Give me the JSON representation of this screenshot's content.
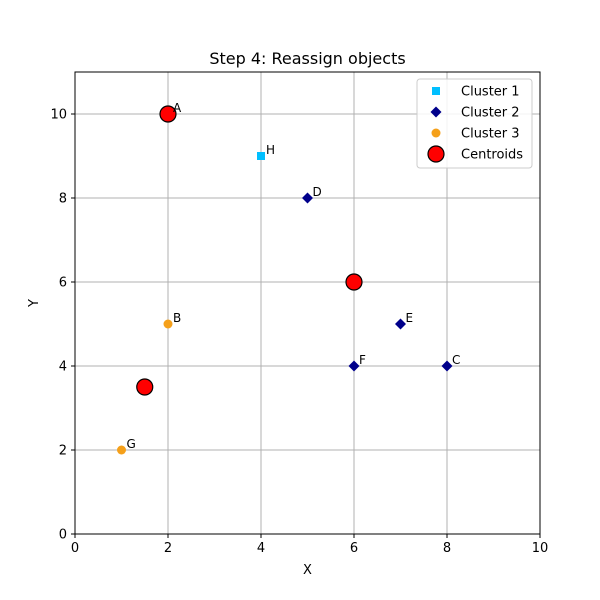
{
  "chart_data": {
    "type": "scatter",
    "title": "Step 4: Reassign objects",
    "xlabel": "X",
    "ylabel": "Y",
    "xlim": [
      0,
      10
    ],
    "ylim": [
      0,
      11
    ],
    "xticks": [
      0,
      2,
      4,
      6,
      8,
      10
    ],
    "yticks": [
      0,
      2,
      4,
      6,
      8,
      10
    ],
    "grid": true,
    "legend_position": "top-right",
    "series": [
      {
        "name": "Cluster 1",
        "marker": "square",
        "color": "#00bfff",
        "points": [
          {
            "label": "H",
            "x": 4,
            "y": 9
          }
        ]
      },
      {
        "name": "Cluster 2",
        "marker": "diamond",
        "color": "#00008b",
        "points": [
          {
            "label": "D",
            "x": 5,
            "y": 8
          },
          {
            "label": "E",
            "x": 7,
            "y": 5
          },
          {
            "label": "F",
            "x": 6,
            "y": 4
          },
          {
            "label": "C",
            "x": 8,
            "y": 4
          }
        ]
      },
      {
        "name": "Cluster 3",
        "marker": "circle",
        "color": "#f5a01a",
        "points": [
          {
            "label": "B",
            "x": 2,
            "y": 5
          },
          {
            "label": "G",
            "x": 1,
            "y": 2
          }
        ]
      }
    ],
    "centroids": {
      "name": "Centroids",
      "marker": "circle",
      "color": "#ff0000",
      "edge_color": "#000000",
      "points": [
        {
          "label": "A",
          "x": 2,
          "y": 10
        },
        {
          "label": "",
          "x": 6,
          "y": 6
        },
        {
          "label": "",
          "x": 1.5,
          "y": 3.5
        }
      ]
    }
  }
}
